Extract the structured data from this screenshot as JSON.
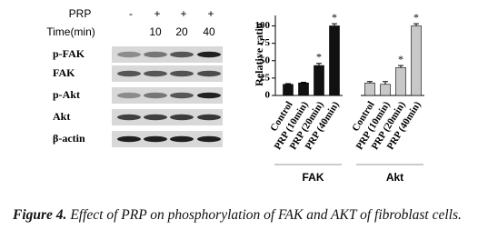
{
  "blot": {
    "treatment_label": "PRP",
    "treatment": [
      "-",
      "+",
      "+",
      "+"
    ],
    "time_label": "Time(min)",
    "times": [
      null,
      10,
      20,
      40
    ],
    "rows": [
      "p-FAK",
      "FAK",
      "p-Akt",
      "Akt",
      "β-actin"
    ]
  },
  "chart_data": {
    "type": "bar",
    "y_label": "Relative ratio",
    "categories": [
      "Control",
      "PRP (10min)",
      "PRP (20min)",
      "PRP (40min)"
    ],
    "series": [
      {
        "name": "FAK",
        "color": "#111111",
        "values": [
          16,
          18,
          43,
          100
        ],
        "errors": [
          1,
          1,
          3,
          3
        ],
        "significant": [
          false,
          false,
          true,
          true
        ]
      },
      {
        "name": "Akt",
        "color": "#c8c8c8",
        "values": [
          18,
          16,
          40,
          100
        ],
        "errors": [
          2,
          4,
          3,
          3
        ],
        "significant": [
          false,
          false,
          true,
          true
        ]
      }
    ],
    "significance_marker": "*",
    "ylim": [
      0,
      115
    ],
    "yticks": [
      0,
      25,
      50,
      75,
      100
    ]
  },
  "caption": {
    "label": "Figure 4.",
    "text": "Effect of PRP on phosphorylation of FAK and AKT of fibroblast cells."
  }
}
